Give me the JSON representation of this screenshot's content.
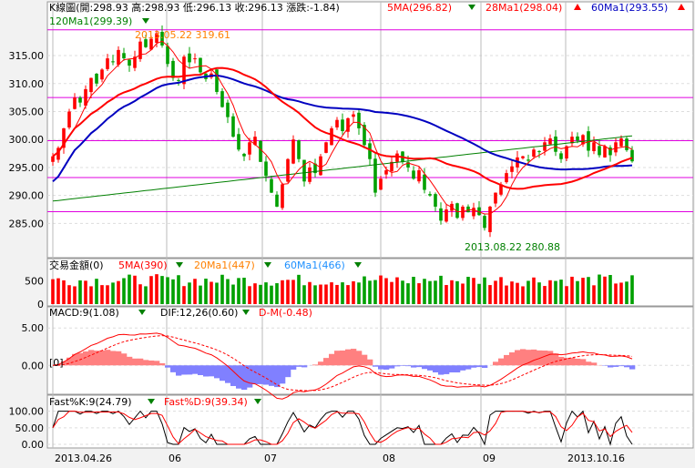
{
  "header": {
    "ohlc": "K線圖(開:298.93 高:298.93 低:296.13 收:296.13 漲跌:-1.84)",
    "ma5": "5MA(296.82)",
    "ma28": "28Ma1(298.04)",
    "ma60": "60Ma1(293.55)",
    "ma120": "120Ma1(299.39)"
  },
  "annotations": {
    "high": "2013.05.22  319.61",
    "low": "2013.08.22  280.88"
  },
  "volume_header": {
    "title": "交易金額(0)",
    "ma5": "5MA(390)",
    "ma20": "20Ma1(447)",
    "ma60": "60Ma1(466)"
  },
  "macd_header": {
    "title": "MACD:9(1.08)",
    "dif": "DIF:12,26(0.60)",
    "dm": "D-M(-0.48)",
    "zero_label": "[0]"
  },
  "kd_header": {
    "k": "Fast%K:9(24.79)",
    "d": "Fast%D:9(39.34)"
  },
  "x_axis": [
    "2013.04.26",
    "06",
    "07",
    "08",
    "09",
    "2013.10.16"
  ],
  "colors": {
    "up": "#ff0000",
    "down": "#00a000",
    "ma5": "#ff0000",
    "ma28": "#ff0000",
    "ma60": "#0000c0",
    "ma120": "#008000",
    "guide": "#e000e0",
    "macd_pos": "#ff8080",
    "macd_neg": "#8080ff"
  },
  "chart_data": [
    {
      "type": "candlestick",
      "title": "K線圖",
      "yticks": [
        "315.00",
        "310.00",
        "305.00",
        "300.00",
        "295.00",
        "290.00",
        "285.00"
      ],
      "ylim": [
        281,
        322
      ],
      "guides": [
        319.61,
        307.5,
        299.8,
        293.2,
        287.1
      ],
      "closes": [
        297,
        298.5,
        302,
        305,
        307.5,
        306.6,
        309,
        311,
        310,
        312.5,
        314.5,
        313.8,
        316,
        314.5,
        313.2,
        314.8,
        317.5,
        316.5,
        318,
        319,
        316.8,
        313.5,
        311,
        310.5,
        314.8,
        313.8,
        314.5,
        312,
        310.8,
        311.8,
        308.5,
        305.8,
        304,
        300.5,
        298.2,
        297,
        299.5,
        300.5,
        296,
        293.5,
        290.5,
        288,
        292,
        296.5,
        300,
        296.5,
        292.5,
        295,
        294,
        297,
        299.5,
        302,
        303.5,
        301.5,
        303.8,
        304.5,
        302,
        299,
        296.5,
        290.5,
        293,
        294.5,
        296,
        297.5,
        296,
        295,
        293,
        294.5,
        291,
        290,
        288,
        285.5,
        287.5,
        288.5,
        286,
        288,
        287,
        287.8,
        286.5,
        284.2,
        288,
        290.5,
        292,
        294,
        295.2,
        296.8,
        297,
        296.2,
        298.2,
        297.8,
        299.5,
        300.2,
        297.8,
        296.5,
        298.8,
        300.5,
        299.8,
        300.8,
        298,
        299.5,
        297.2,
        298.8,
        297.2,
        299.5,
        300.2,
        298.1,
        296.1
      ],
      "ma5_label": "5MA",
      "ma28_label": "28Ma1",
      "ma60_label": "60Ma1",
      "ma120_label": "120Ma1"
    },
    {
      "type": "bar",
      "title": "交易金額",
      "yticks": [
        "500",
        "0"
      ],
      "ylim": [
        0,
        700
      ]
    },
    {
      "type": "area",
      "title": "MACD",
      "yticks": [
        "5.00",
        "0.00"
      ],
      "ylim": [
        -3.5,
        6
      ]
    },
    {
      "type": "line",
      "title": "Fast%K / Fast%D",
      "yticks": [
        "100.00",
        "50.00",
        "0.00"
      ],
      "ylim": [
        0,
        110
      ]
    }
  ]
}
